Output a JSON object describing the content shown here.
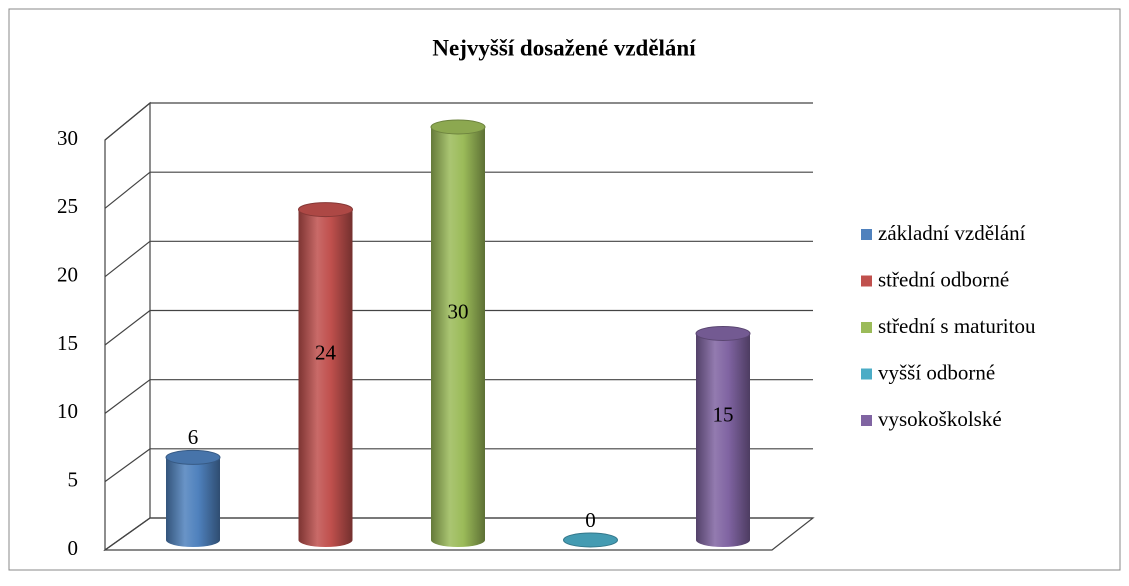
{
  "chart_data": {
    "type": "bar3d",
    "title": "Nejvyšší dosažené vzdělání",
    "series": [
      {
        "name": "základní vzdělání",
        "color": "#4f81bd",
        "values": [
          6
        ]
      },
      {
        "name": "střední odborné",
        "color": "#c0504d",
        "values": [
          24
        ]
      },
      {
        "name": "střední s maturitou",
        "color": "#9bbb59",
        "values": [
          30
        ]
      },
      {
        "name": "vyšší odborné",
        "color": "#4bacc6",
        "values": [
          0
        ]
      },
      {
        "name": "vysokoškolské",
        "color": "#8064a2",
        "values": [
          15
        ]
      }
    ],
    "ylim": [
      0,
      30
    ],
    "yticks": [
      0,
      5,
      10,
      15,
      20,
      25,
      30
    ],
    "grid": true,
    "legend": "right"
  }
}
